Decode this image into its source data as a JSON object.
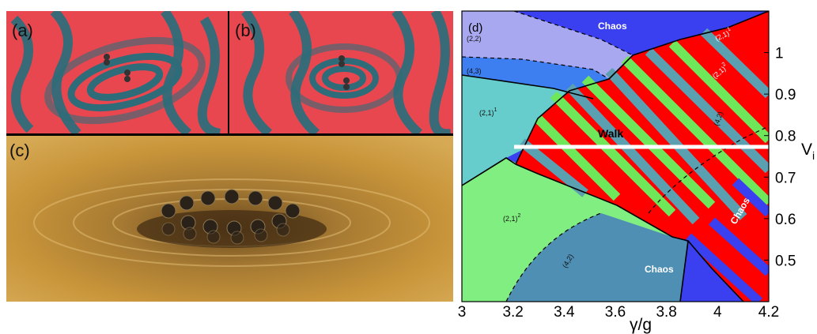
{
  "panels": {
    "a": {
      "label": "(a)"
    },
    "b": {
      "label": "(b)"
    },
    "c": {
      "label": "(c)"
    },
    "d": {
      "label": "(d)"
    }
  },
  "colors": {
    "wave_red": "#e8474f",
    "wave_teal": "#2f6c7a",
    "bath_gold": "#c9953a",
    "chaos_blue": "#3a3ff0",
    "walk_red": "#ff0000",
    "walk_stripe_green": "#6ee85a",
    "walk_stripe_teal": "#5aa0b0",
    "region_light_green": "#80ee80",
    "region_cyan": "#66cccc",
    "region_lavender": "#a8a8f0",
    "region_mid_blue": "#3d7ff0",
    "region_steel": "#4e8fb3"
  },
  "phase_diagram": {
    "x_axis_label": "γ/g",
    "y_axis_label": "V",
    "y_axis_label_subscript": "i",
    "x_ticks": [
      "3",
      "3.2",
      "3.4",
      "3.6",
      "3.8",
      "4",
      "4.2"
    ],
    "y_ticks": [
      "1",
      "0.9",
      "0.8",
      "0.7",
      "0.6",
      "0.5"
    ],
    "xlim": [
      3,
      4.2
    ],
    "ylim": [
      0.4,
      1.1
    ],
    "walk_line_y": 0.77,
    "walk_line_x": [
      3.2,
      4.2
    ],
    "regions": {
      "chaos_top": "Chaos",
      "chaos_bottom": "Chaos",
      "chaos_side": "Chaos",
      "walk": "Walk",
      "r22": "(2,2)",
      "r43": "(4,3)",
      "r21_1": "(2,1)",
      "r21_1_sup": "1",
      "r21_2": "(2,1)",
      "r21_2_sup": "2",
      "r42_low": "(4,2)",
      "r42_high": "(4,2)",
      "r21_1p": "(2,1)",
      "r21_1p_sup": "1",
      "r21_2p": "(2,1)",
      "r21_2p_sup": "2"
    }
  }
}
